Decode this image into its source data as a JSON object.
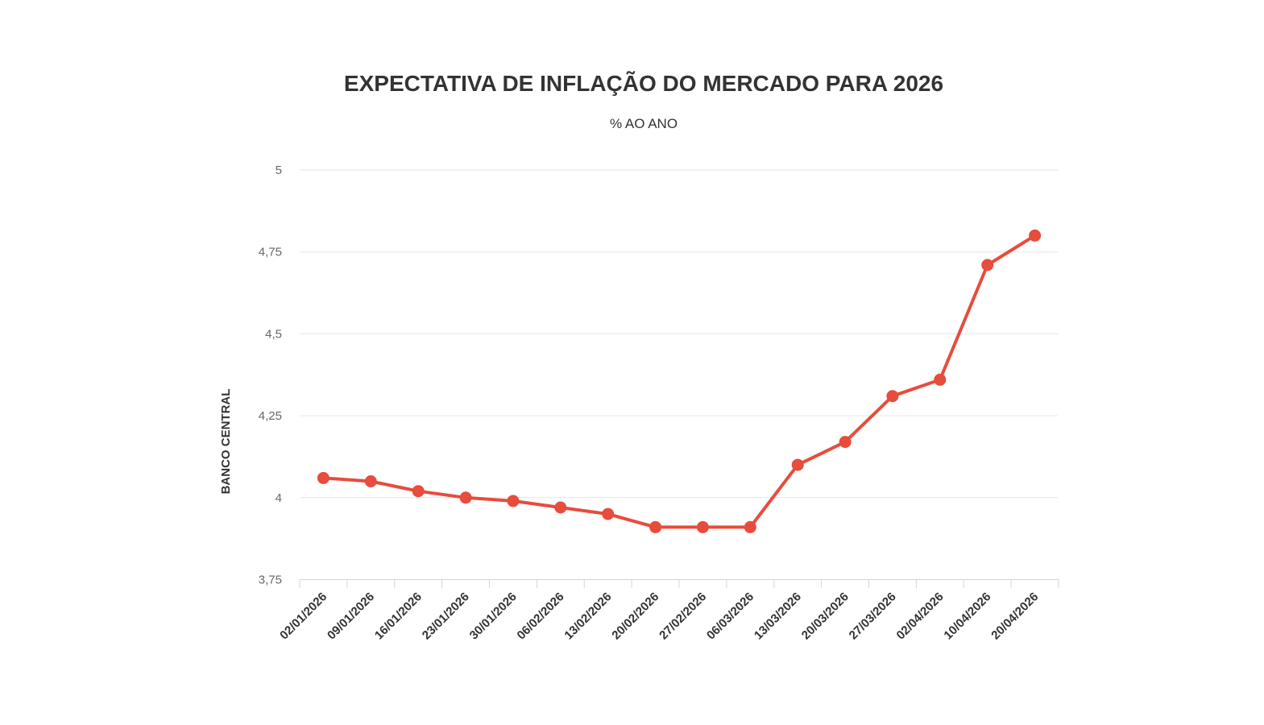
{
  "chart_data": {
    "type": "line",
    "title": "EXPECTATIVA DE INFLAÇÃO DO MERCADO PARA 2026",
    "subtitle": "% AO ANO",
    "ylabel": "BANCO CENTRAL",
    "xlabel": "",
    "categories": [
      "02/01/2026",
      "09/01/2026",
      "16/01/2026",
      "23/01/2026",
      "30/01/2026",
      "06/02/2026",
      "13/02/2026",
      "20/02/2026",
      "27/02/2026",
      "06/03/2026",
      "13/03/2026",
      "20/03/2026",
      "27/03/2026",
      "02/04/2026",
      "10/04/2026",
      "20/04/2026"
    ],
    "values": [
      4.06,
      4.05,
      4.02,
      4.0,
      3.99,
      3.97,
      3.95,
      3.91,
      3.91,
      3.91,
      4.1,
      4.17,
      4.31,
      4.36,
      4.71,
      4.8
    ],
    "ylim": [
      3.75,
      5
    ],
    "yticks": [
      3.75,
      4,
      4.25,
      4.5,
      4.75,
      5
    ],
    "ytick_labels": [
      "3,75",
      "4",
      "4,25",
      "4,5",
      "4,75",
      "5"
    ],
    "xtick_rotation": -45,
    "grid": "horizontal",
    "legend": "none",
    "marker": "circle",
    "colors": {
      "line": "#e74c3c",
      "marker": "#e74c3c",
      "grid": "#e6e6e6",
      "axis": "#ccd6eb",
      "title": "#333333",
      "subtitle": "#333333",
      "y_axis_title": "#333333",
      "ytick_label": "#666666",
      "xtick_label": "#333333",
      "background": "#ffffff"
    }
  }
}
